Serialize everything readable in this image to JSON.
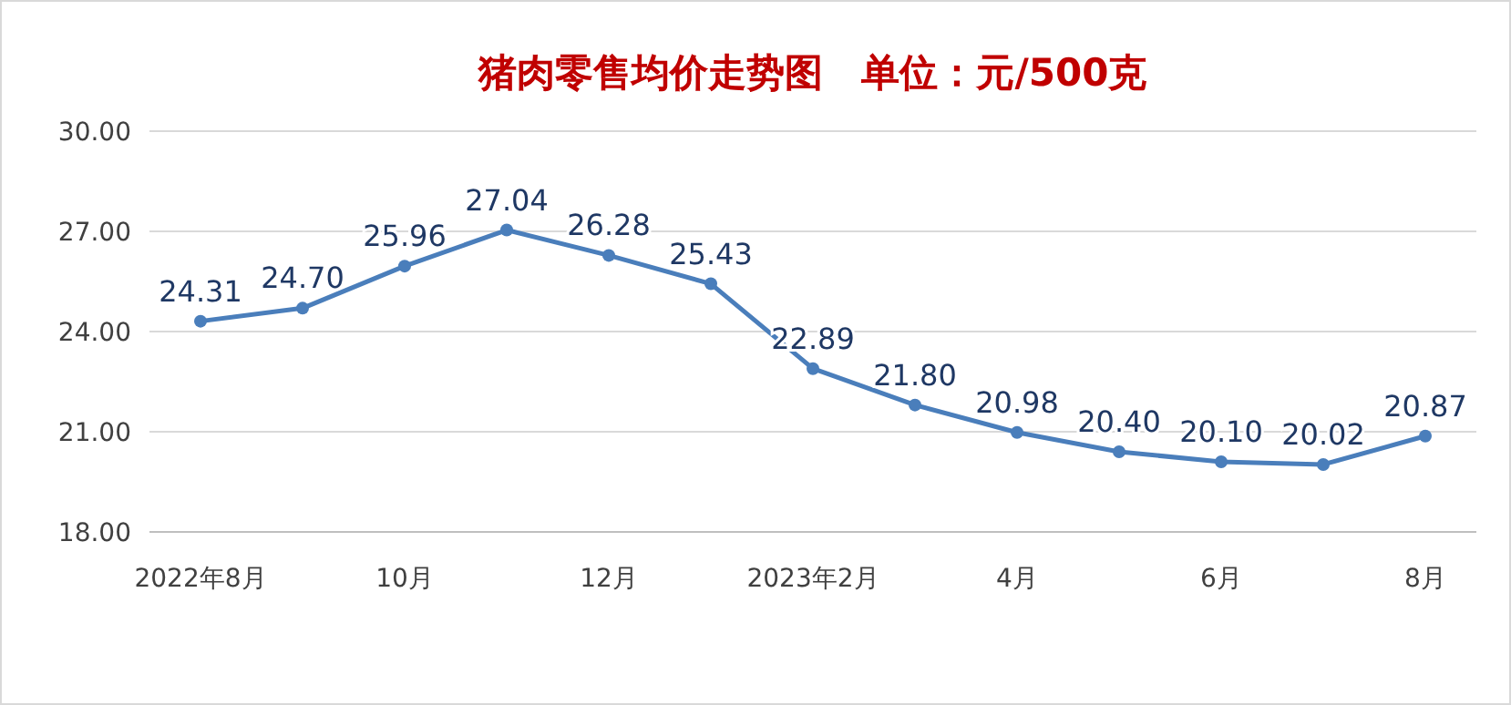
{
  "chart_data": {
    "type": "line",
    "title": "猪肉零售均价走势图　单位：元/500克",
    "categories": [
      "2022年8月",
      null,
      "10月",
      null,
      "12月",
      null,
      "2023年2月",
      null,
      "4月",
      null,
      "6月",
      null,
      "8月"
    ],
    "series": [
      {
        "color": "#4a7ebb",
        "values": [
          24.31,
          24.7,
          25.96,
          27.04,
          26.28,
          25.43,
          22.89,
          21.8,
          20.98,
          20.4,
          20.1,
          20.02,
          20.87
        ],
        "value_labels": [
          "24.31",
          "24.70",
          "25.96",
          "27.04",
          "26.28",
          "25.43",
          "22.89",
          "21.80",
          "20.98",
          "20.40",
          "20.10",
          "20.02",
          "20.87"
        ]
      }
    ],
    "ylim": [
      18,
      30
    ],
    "yticks": [
      {
        "value": 18,
        "label": "18.00"
      },
      {
        "value": 21,
        "label": "21.00"
      },
      {
        "value": 24,
        "label": "24.00"
      },
      {
        "value": 27,
        "label": "27.00"
      },
      {
        "value": 30,
        "label": "30.00"
      }
    ],
    "grid": "y",
    "marker": "circle",
    "line_style": "solid"
  }
}
